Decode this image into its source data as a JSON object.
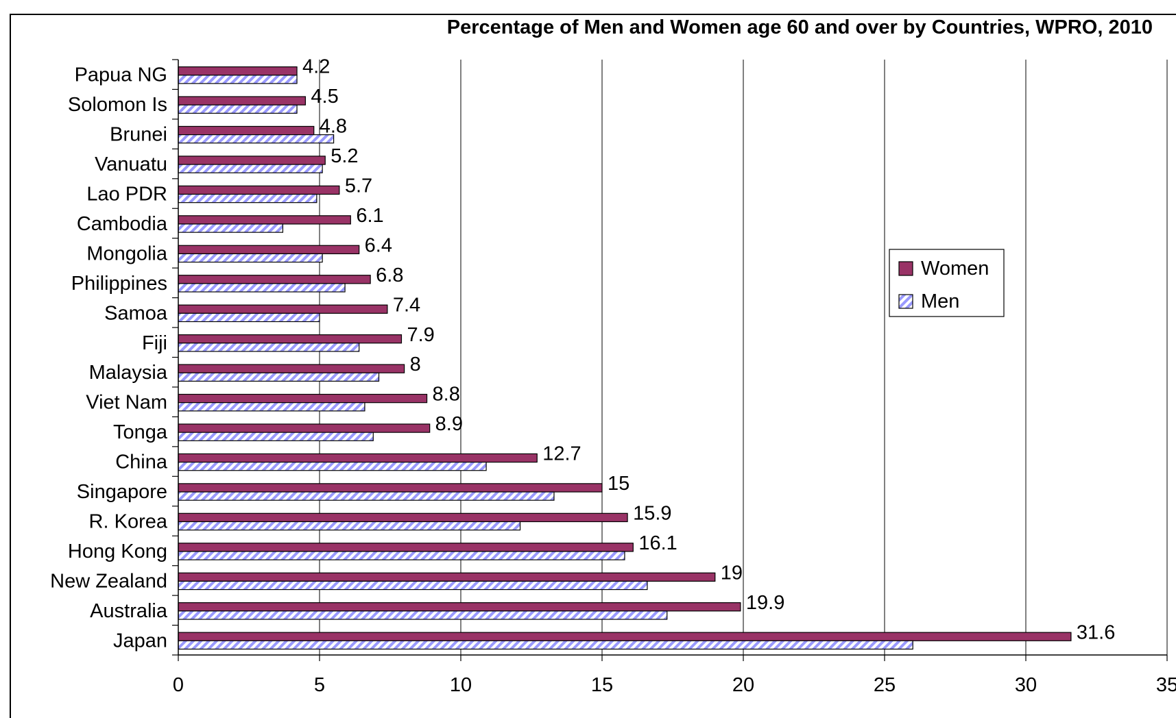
{
  "chart_data": {
    "type": "bar",
    "orientation": "horizontal",
    "title": "Percentage of Men and Women age 60 and over by Countries, WPRO, 2010",
    "xlabel": "",
    "ylabel": "",
    "categories": [
      "Papua NG",
      "Solomon Is",
      "Brunei",
      "Vanuatu",
      "Lao PDR",
      "Cambodia",
      "Mongolia",
      "Philippines",
      "Samoa",
      "Fiji",
      "Malaysia",
      "Viet Nam",
      "Tonga",
      "China",
      "Singapore",
      "R. Korea",
      "Hong Kong",
      "New Zealand",
      "Australia",
      "Japan"
    ],
    "series": [
      {
        "name": "Women",
        "values": [
          4.2,
          4.5,
          4.8,
          5.2,
          5.7,
          6.1,
          6.4,
          6.8,
          7.4,
          7.9,
          8,
          8.8,
          8.9,
          12.7,
          15,
          15.9,
          16.1,
          19,
          19.9,
          31.6
        ],
        "color": "#993366",
        "data_labels": [
          "4.2",
          "4.5",
          "4.8",
          "5.2",
          "5.7",
          "6.1",
          "6.4",
          "6.8",
          "7.4",
          "7.9",
          "8",
          "8.8",
          "8.9",
          "12.7",
          "15",
          "15.9",
          "16.1",
          "19",
          "19.9",
          "31.6"
        ]
      },
      {
        "name": "Men",
        "values": [
          4.2,
          4.2,
          5.5,
          5.1,
          4.9,
          3.7,
          5.1,
          5.9,
          5.0,
          6.4,
          7.1,
          6.6,
          6.9,
          10.9,
          13.3,
          12.1,
          15.8,
          16.6,
          17.3,
          26.0
        ],
        "color": "#9999ff",
        "pattern": "diagonal-hatch"
      }
    ],
    "xlim": [
      0,
      35
    ],
    "xticks": [
      "0",
      "5",
      "10",
      "15",
      "20",
      "25",
      "30",
      "35"
    ],
    "grid": true,
    "legend_position": "right"
  }
}
